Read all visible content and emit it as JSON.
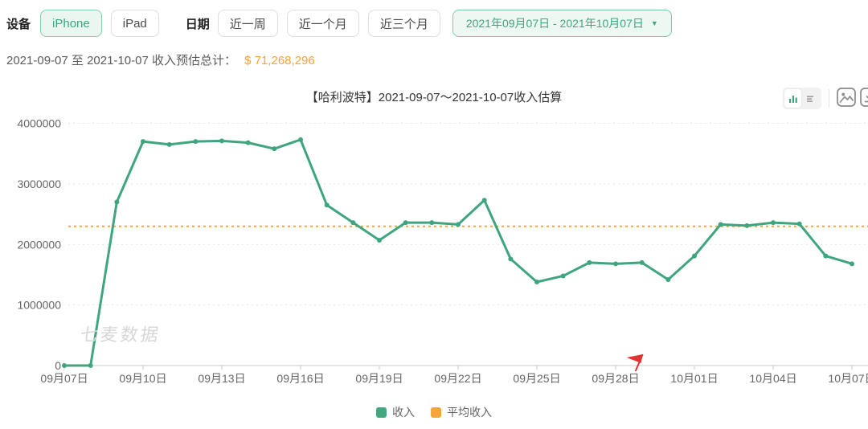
{
  "toolbar": {
    "device_label": "设备",
    "device_options": [
      {
        "label": "iPhone",
        "selected": true
      },
      {
        "label": "iPad",
        "selected": false
      }
    ],
    "date_label": "日期",
    "date_ranges": [
      {
        "label": "近一周"
      },
      {
        "label": "近一个月"
      },
      {
        "label": "近三个月"
      }
    ],
    "date_picker": {
      "value": "2021年09月07日 - 2021年10月07日",
      "caret": "▼"
    }
  },
  "summary": {
    "prefix": "2021-09-07 至 2021-10-07 收入预估总计：",
    "amount": "$ 71,268,296"
  },
  "chart": {
    "title": "【哈利波特】2021-09-07～2021-10-07收入估算",
    "watermark": "七麦数据",
    "legend": [
      {
        "label": "收入",
        "color": "#41a87f"
      },
      {
        "label": "平均收入",
        "color": "#f5a63b"
      }
    ]
  },
  "chart_data": {
    "type": "line",
    "title": "【哈利波特】2021-09-07～2021-10-07收入估算",
    "x": [
      "09月07日",
      "09月08日",
      "09月09日",
      "09月10日",
      "09月11日",
      "09月12日",
      "09月13日",
      "09月14日",
      "09月15日",
      "09月16日",
      "09月17日",
      "09月18日",
      "09月19日",
      "09月20日",
      "09月21日",
      "09月22日",
      "09月23日",
      "09月24日",
      "09月25日",
      "09月26日",
      "09月27日",
      "09月28日",
      "09月29日",
      "09月30日",
      "10月01日",
      "10月02日",
      "10月03日",
      "10月04日",
      "10月05日",
      "10月06日",
      "10月07日"
    ],
    "x_label_every": 3,
    "series": [
      {
        "name": "收入",
        "type": "line",
        "color": "#3fa57e",
        "values": [
          0,
          0,
          2700000,
          3700000,
          3650000,
          3700000,
          3710000,
          3680000,
          3580000,
          3730000,
          2650000,
          2360000,
          2070000,
          2360000,
          2360000,
          2330000,
          2730000,
          1760000,
          1380000,
          1480000,
          1700000,
          1680000,
          1700000,
          1420000,
          1810000,
          2330000,
          2310000,
          2360000,
          2340000,
          1810000,
          1680000
        ]
      },
      {
        "name": "平均收入",
        "type": "horizontal-dashed",
        "color": "#f5a63b",
        "value": 2299000
      }
    ],
    "ylim": [
      0,
      4000000
    ],
    "y_ticks": [
      0,
      1000000,
      2000000,
      3000000,
      4000000
    ],
    "grid": "dotted-horizontal",
    "legend_position": "bottom",
    "flag_marker_index": 22
  },
  "icons": {
    "chart_view": "bar-chart-toggle",
    "table_view": "table-list-toggle",
    "export_image": "image-icon",
    "download": "download-icon"
  },
  "colors": {
    "green": "#3fa57e",
    "green_bg": "#eaf6f0",
    "green_border": "#85ccab",
    "orange": "#f5a63b",
    "amount_orange": "#f9a23c",
    "flag_red": "#e03434",
    "grid": "#e1e1e1",
    "axis": "#c9c9c9",
    "axis_text": "#666666"
  }
}
